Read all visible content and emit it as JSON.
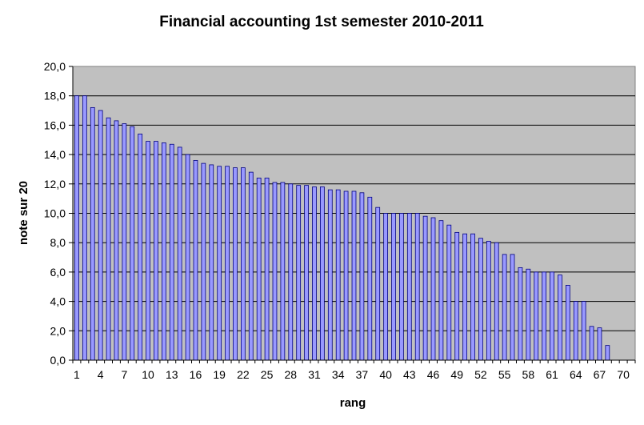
{
  "chart_data": {
    "type": "bar",
    "title": "Financial accounting 1st semester 2010-2011",
    "xlabel": "rang",
    "ylabel": "note sur 20",
    "x_tick_labels": [
      "1",
      "4",
      "7",
      "10",
      "13",
      "16",
      "19",
      "22",
      "25",
      "28",
      "31",
      "34",
      "37",
      "40",
      "43",
      "46",
      "49",
      "52",
      "55",
      "58",
      "61",
      "64",
      "67",
      "70"
    ],
    "y_tick_labels": [
      "0,0",
      "2,0",
      "4,0",
      "6,0",
      "8,0",
      "10,0",
      "12,0",
      "14,0",
      "16,0",
      "18,0",
      "20,0"
    ],
    "ylim": [
      0,
      20
    ],
    "xlim": [
      1,
      71
    ],
    "grid": "horizontal",
    "legend": "none",
    "plot_background": "#c0c0c0",
    "bar_fill": "#9999ff",
    "bar_stroke": "#000080",
    "categories": [
      1,
      2,
      3,
      4,
      5,
      6,
      7,
      8,
      9,
      10,
      11,
      12,
      13,
      14,
      15,
      16,
      17,
      18,
      19,
      20,
      21,
      22,
      23,
      24,
      25,
      26,
      27,
      28,
      29,
      30,
      31,
      32,
      33,
      34,
      35,
      36,
      37,
      38,
      39,
      40,
      41,
      42,
      43,
      44,
      45,
      46,
      47,
      48,
      49,
      50,
      51,
      52,
      53,
      54,
      55,
      56,
      57,
      58,
      59,
      60,
      61,
      62,
      63,
      64,
      65,
      66,
      67,
      68,
      69,
      70,
      71
    ],
    "values": [
      18.0,
      18.0,
      17.2,
      17.0,
      16.5,
      16.3,
      16.1,
      15.9,
      15.4,
      14.9,
      14.9,
      14.8,
      14.7,
      14.5,
      14.0,
      13.6,
      13.4,
      13.3,
      13.2,
      13.2,
      13.1,
      13.1,
      12.8,
      12.4,
      12.4,
      12.1,
      12.1,
      12.0,
      11.9,
      11.9,
      11.8,
      11.8,
      11.6,
      11.6,
      11.5,
      11.5,
      11.4,
      11.1,
      10.4,
      10.0,
      10.0,
      10.0,
      10.0,
      10.0,
      9.8,
      9.7,
      9.5,
      9.2,
      8.7,
      8.6,
      8.6,
      8.3,
      8.1,
      8.0,
      7.2,
      7.2,
      6.3,
      6.2,
      6.0,
      6.0,
      6.0,
      5.8,
      5.1,
      4.0,
      4.0,
      2.3,
      2.2,
      1.0,
      0,
      0,
      0
    ]
  }
}
